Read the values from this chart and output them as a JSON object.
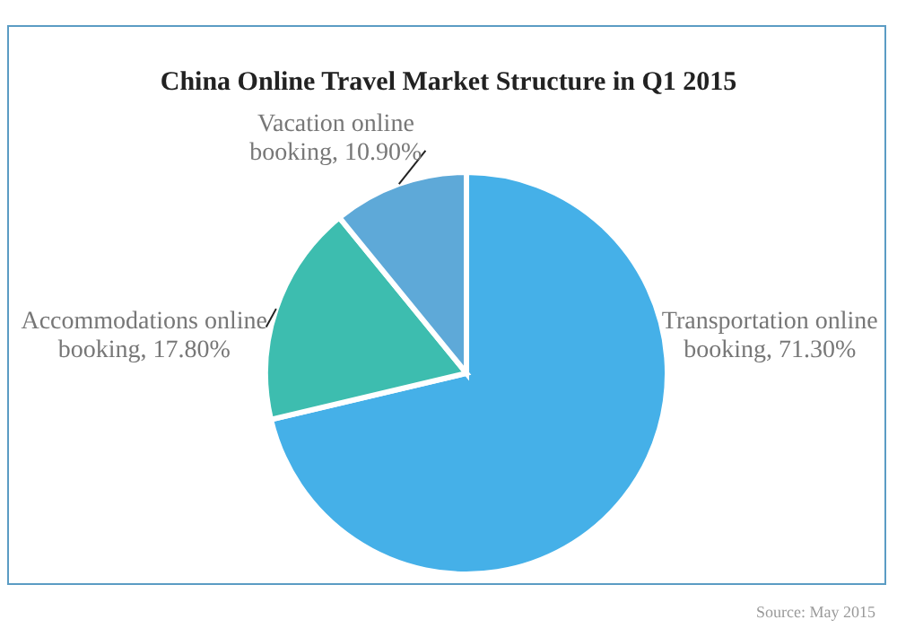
{
  "chart_data": {
    "type": "pie",
    "title": "China Online Travel Market Structure in Q1 2015",
    "categories": [
      "Transportation online booking",
      "Accommodations online booking",
      "Vacation online booking"
    ],
    "values": [
      71.3,
      17.8,
      10.9
    ],
    "value_labels": [
      "71.30%",
      "17.80%",
      "10.90%"
    ],
    "colors": [
      "#45b0e8",
      "#3dbdaf",
      "#5ea9d8"
    ],
    "annotations": [
      "Source: May 2015"
    ]
  }
}
